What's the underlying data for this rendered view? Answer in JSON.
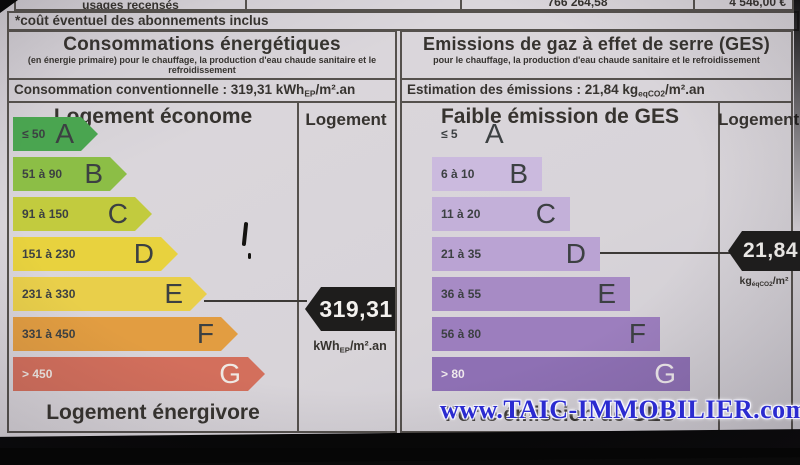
{
  "top_table": {
    "usages_label": "usages recensés",
    "energy_value": "766 264,58",
    "cost_value": "4 546,00 €",
    "footnote": "*coût éventuel des abonnements inclus"
  },
  "watermark": "www.TAIC-IMMOBILIER.com",
  "chart_data": [
    {
      "type": "bar",
      "title": "Consommations énergétiques",
      "subtitle": "(en énergie primaire) pour le chauffage, la production d'eau chaude sanitaire et le refroidissement",
      "value": 319.31,
      "unit": "kWhEP/m².an",
      "value_line": {
        "prefix": "Consommation conventionnelle : 319,31 kWh",
        "sub": "EP",
        "suffix": "/m².an"
      },
      "header_left": "Logement économe",
      "column_label": "Logement",
      "footer": "Logement énergivore",
      "selected_class": "E",
      "classes": [
        {
          "letter": "A",
          "range": "≤ 50",
          "color": "#4aa550",
          "text_color": "#3c4042"
        },
        {
          "letter": "B",
          "range": "51 à 90",
          "color": "#8cbe46",
          "text_color": "#3c4042"
        },
        {
          "letter": "C",
          "range": "91 à 150",
          "color": "#c2cb3e",
          "text_color": "#3c4042"
        },
        {
          "letter": "D",
          "range": "151 à 230",
          "color": "#e8d23e",
          "text_color": "#3c4042"
        },
        {
          "letter": "E",
          "range": "231 à 330",
          "color": "#e9cf4a",
          "text_color": "#3c4042"
        },
        {
          "letter": "F",
          "range": "331 à 450",
          "color": "#e29d41",
          "text_color": "#3c4042"
        },
        {
          "letter": "G",
          "range": "> 450",
          "color": "#d36f5c",
          "text_color": "#efe9e4"
        }
      ],
      "marker": {
        "value": "319,31",
        "unit_prefix": "kWh",
        "unit_sub": "EP",
        "unit_suffix": "/m².an"
      }
    },
    {
      "type": "bar",
      "title": "Emissions de gaz à effet de serre (GES)",
      "subtitle": "pour le chauffage, la production d'eau chaude sanitaire et le refroidissement",
      "value": 21.84,
      "unit": "kgeqCO2/m².an",
      "value_line": {
        "prefix": "Estimation des émissions : 21,84 kg",
        "sub": "eqCO2",
        "suffix": "/m².an"
      },
      "header_left": "Faible émission de GES",
      "column_label": "Logement",
      "footer": "Forte émission de GES",
      "selected_class": "D",
      "classes": [
        {
          "letter": "A",
          "range": "≤ 5",
          "color": "transparent",
          "text_color": "#3c4042"
        },
        {
          "letter": "B",
          "range": "6 à 10",
          "color": "#cbbade",
          "text_color": "#3c4042"
        },
        {
          "letter": "C",
          "range": "11 à 20",
          "color": "#c3b0d9",
          "text_color": "#3c4042"
        },
        {
          "letter": "D",
          "range": "21 à 35",
          "color": "#baa3d3",
          "text_color": "#3c4042"
        },
        {
          "letter": "E",
          "range": "36 à 55",
          "color": "#a78bc5",
          "text_color": "#3c4042"
        },
        {
          "letter": "F",
          "range": "56 à 80",
          "color": "#9c7ebe",
          "text_color": "#3c4042"
        },
        {
          "letter": "G",
          "range": "> 80",
          "color": "#8e70b4",
          "text_color": "#efe9ec"
        }
      ],
      "marker": {
        "value": "21,84",
        "unit_prefix": "kg",
        "unit_sub": "éqCO2",
        "unit_suffix": "/m²"
      }
    }
  ]
}
